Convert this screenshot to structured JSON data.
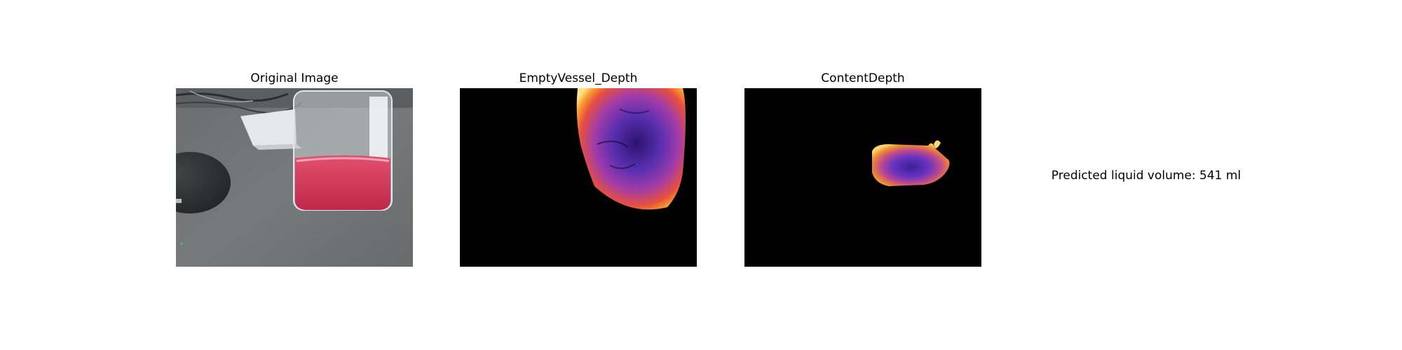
{
  "panels": [
    {
      "title": "Original Image"
    },
    {
      "title": "EmptyVessel_Depth"
    },
    {
      "title": "ContentDepth"
    }
  ],
  "prediction_text": "Predicted liquid volume: 541 ml"
}
